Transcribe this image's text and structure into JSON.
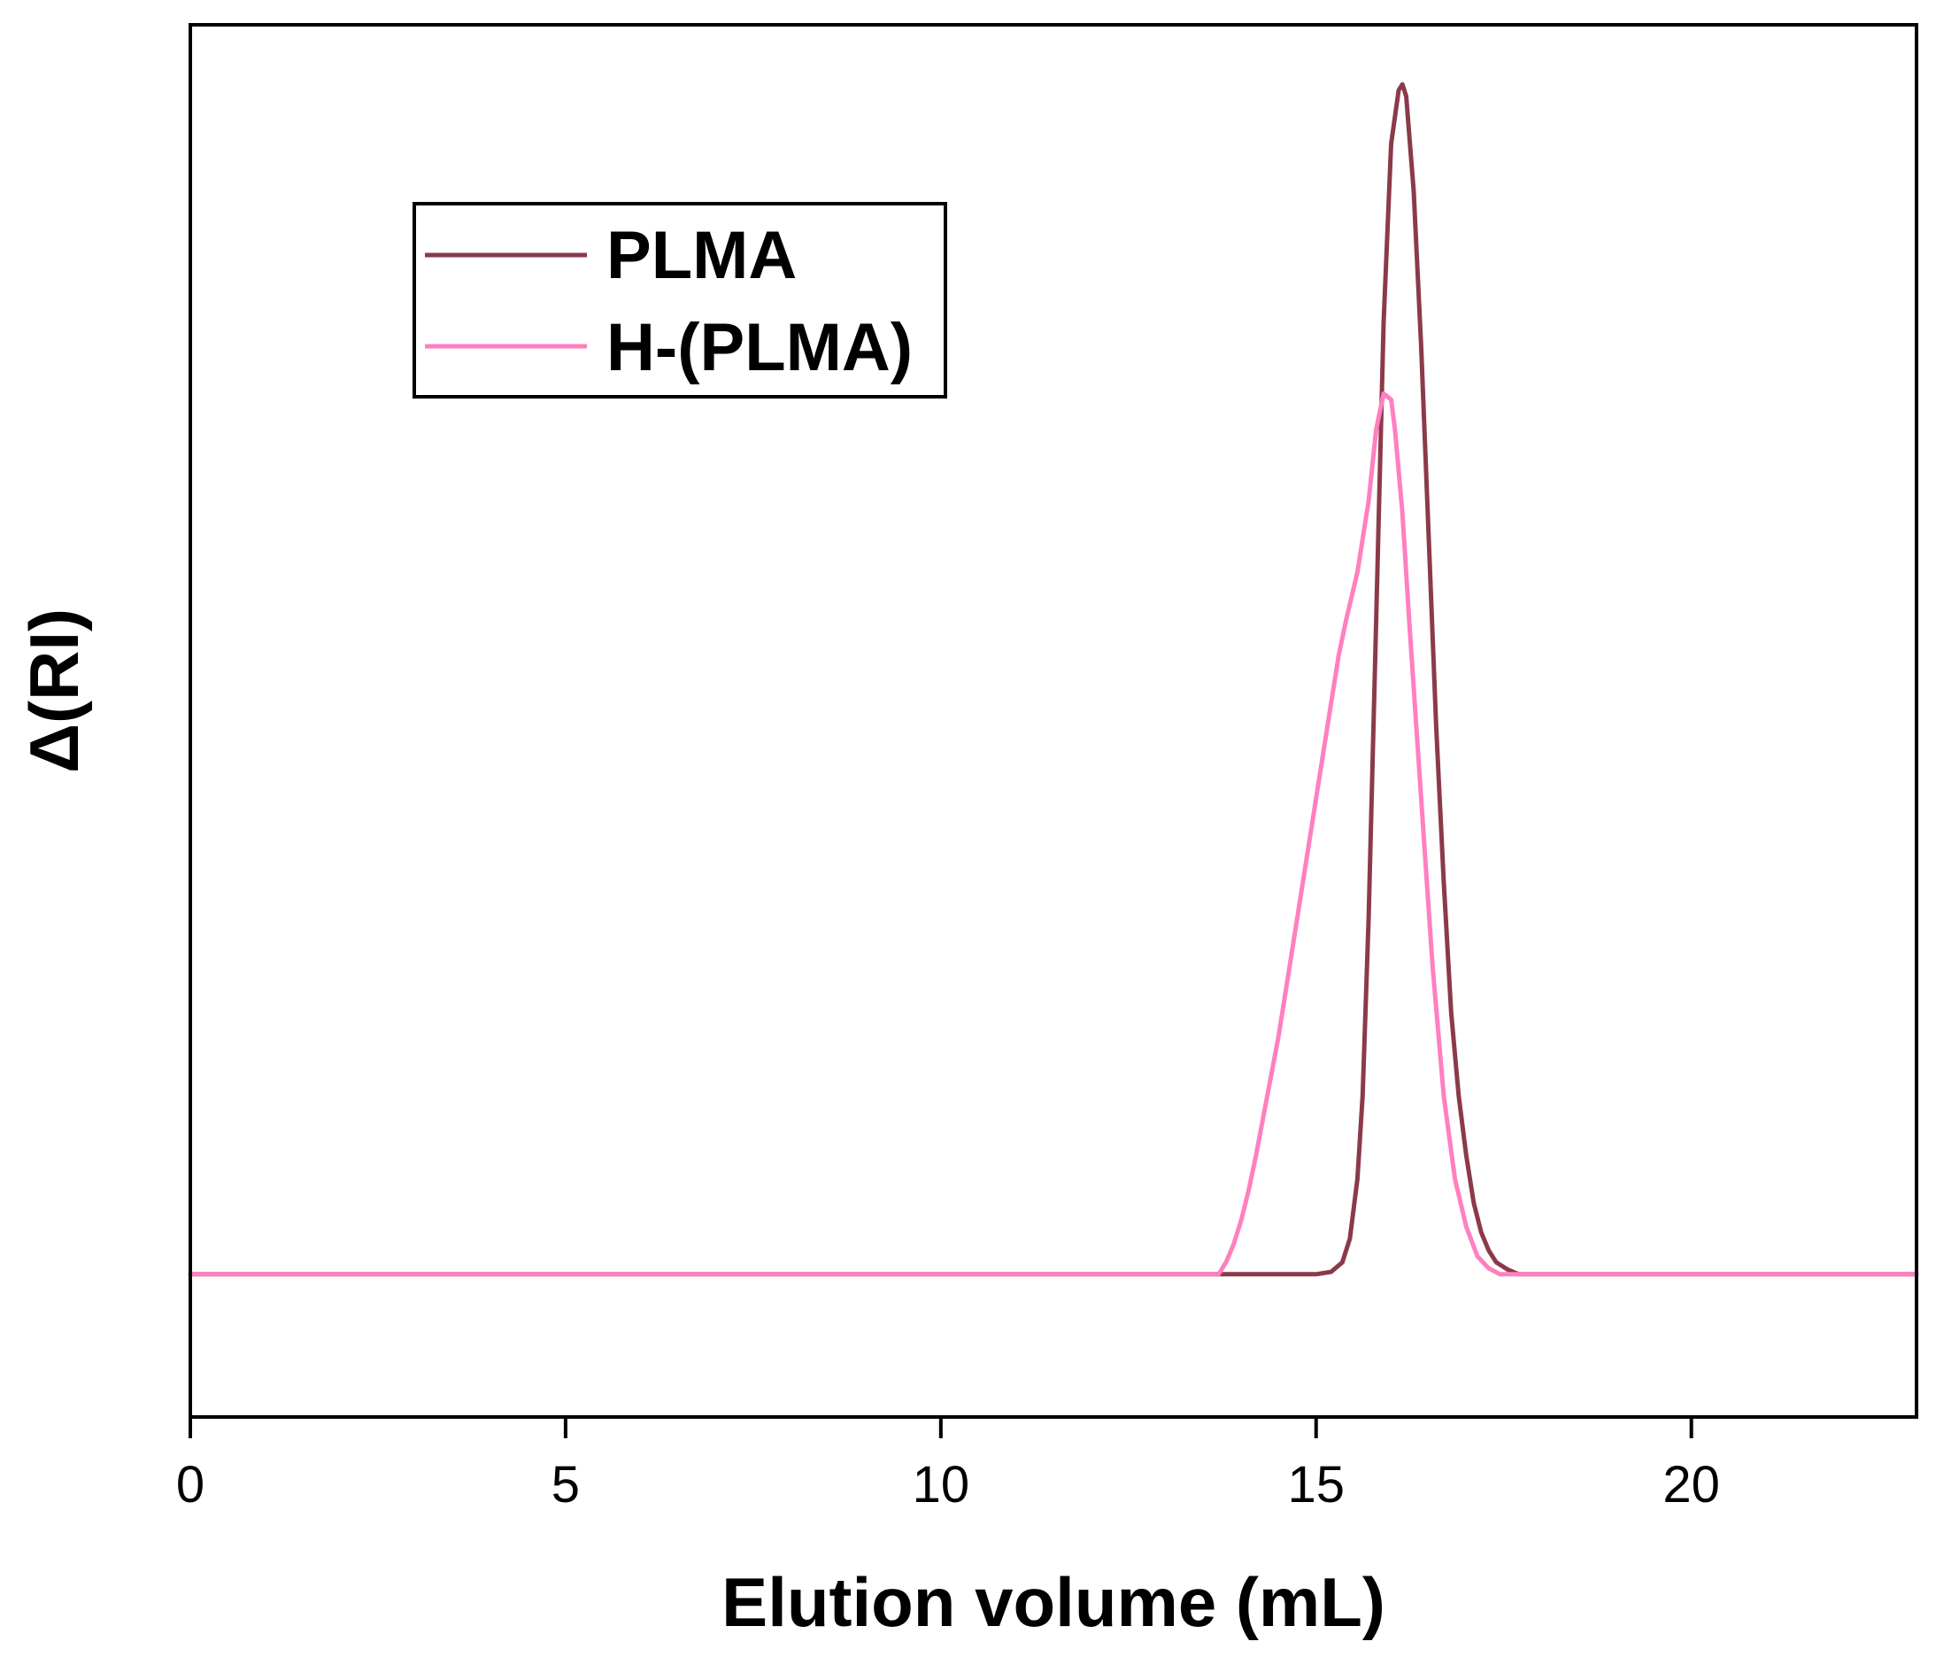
{
  "chart_data": {
    "type": "line",
    "title": "",
    "xlabel": "Elution volume (mL)",
    "ylabel": "Δ(RI)",
    "xlim": [
      0,
      23
    ],
    "ylim": [
      -0.12,
      1.05
    ],
    "xticks": [
      0,
      5,
      10,
      15,
      20
    ],
    "xtick_labels": [
      "0",
      "5",
      "10",
      "15",
      "20"
    ],
    "yticks_shown": false,
    "grid": false,
    "legend_position": "top-left",
    "series": [
      {
        "name": "PLMA",
        "color": "#8b3a4a",
        "x": [
          0,
          13.0,
          15.0,
          15.2,
          15.35,
          15.45,
          15.55,
          15.62,
          15.7,
          15.8,
          15.9,
          16.0,
          16.1,
          16.15,
          16.2,
          16.3,
          16.4,
          16.5,
          16.6,
          16.7,
          16.8,
          16.9,
          17.0,
          17.1,
          17.2,
          17.3,
          17.4,
          17.55,
          17.7,
          23
        ],
        "y": [
          0,
          0,
          0,
          0.002,
          0.01,
          0.03,
          0.08,
          0.15,
          0.3,
          0.55,
          0.8,
          0.95,
          0.995,
          1.0,
          0.99,
          0.91,
          0.78,
          0.62,
          0.46,
          0.33,
          0.22,
          0.15,
          0.1,
          0.06,
          0.035,
          0.02,
          0.01,
          0.004,
          0,
          0
        ]
      },
      {
        "name": "H-(PLMA)",
        "color": "#ff7fbf",
        "x": [
          0,
          13.7,
          13.8,
          13.9,
          14.0,
          14.1,
          14.2,
          14.35,
          14.5,
          14.65,
          14.8,
          14.95,
          15.1,
          15.2,
          15.3,
          15.4,
          15.55,
          15.7,
          15.8,
          15.9,
          16.0,
          16.05,
          16.15,
          16.25,
          16.4,
          16.55,
          16.7,
          16.85,
          17.0,
          17.15,
          17.3,
          17.45,
          17.6,
          23
        ],
        "y": [
          0,
          0,
          0.01,
          0.025,
          0.045,
          0.07,
          0.1,
          0.15,
          0.2,
          0.26,
          0.32,
          0.38,
          0.44,
          0.48,
          0.52,
          0.55,
          0.59,
          0.65,
          0.71,
          0.74,
          0.735,
          0.71,
          0.64,
          0.54,
          0.4,
          0.26,
          0.15,
          0.08,
          0.04,
          0.015,
          0.005,
          0,
          0,
          0
        ]
      }
    ]
  }
}
